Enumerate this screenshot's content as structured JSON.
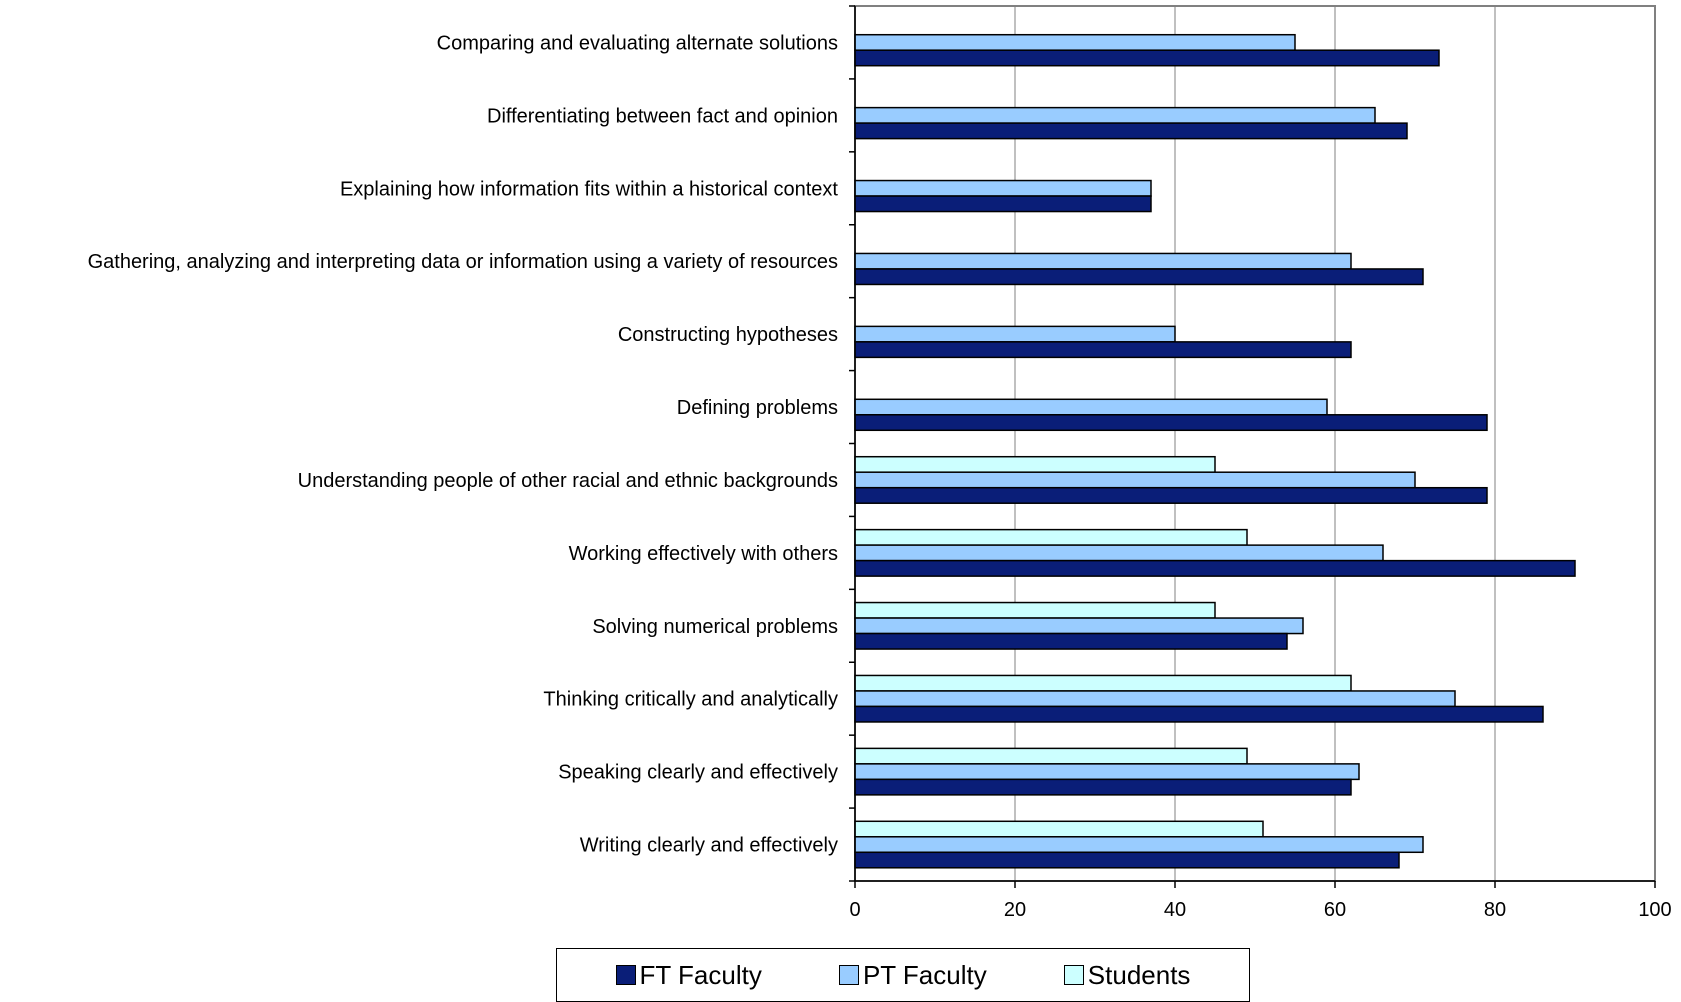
{
  "chart_data": {
    "type": "bar",
    "orientation": "horizontal",
    "categories": [
      "Writing clearly and effectively",
      "Speaking clearly and effectively",
      "Thinking critically and analytically",
      "Solving numerical problems",
      "Working effectively with others",
      "Understanding people of other racial and ethnic backgrounds",
      "Defining problems",
      "Constructing hypotheses",
      "Gathering, analyzing and interpreting data or information using a variety of resources",
      "Explaining how information fits within a historical context",
      "Differentiating between fact and opinion",
      "Comparing and evaluating alternate solutions"
    ],
    "series": [
      {
        "name": "FT Faculty",
        "color": "#0a1e78",
        "values": [
          68,
          62,
          86,
          54,
          90,
          79,
          79,
          62,
          71,
          37,
          69,
          73
        ]
      },
      {
        "name": "PT Faculty",
        "color": "#99ccff",
        "values": [
          71,
          63,
          75,
          56,
          66,
          70,
          59,
          40,
          62,
          37,
          65,
          55
        ]
      },
      {
        "name": "Students",
        "color": "#ccffff",
        "values": [
          51,
          49,
          62,
          45,
          49,
          45,
          null,
          null,
          null,
          null,
          null,
          null
        ]
      }
    ],
    "xlim": [
      0,
      100
    ],
    "xticks": [
      0,
      20,
      40,
      60,
      80,
      100
    ],
    "grid": "vertical",
    "legend_position": "bottom"
  }
}
